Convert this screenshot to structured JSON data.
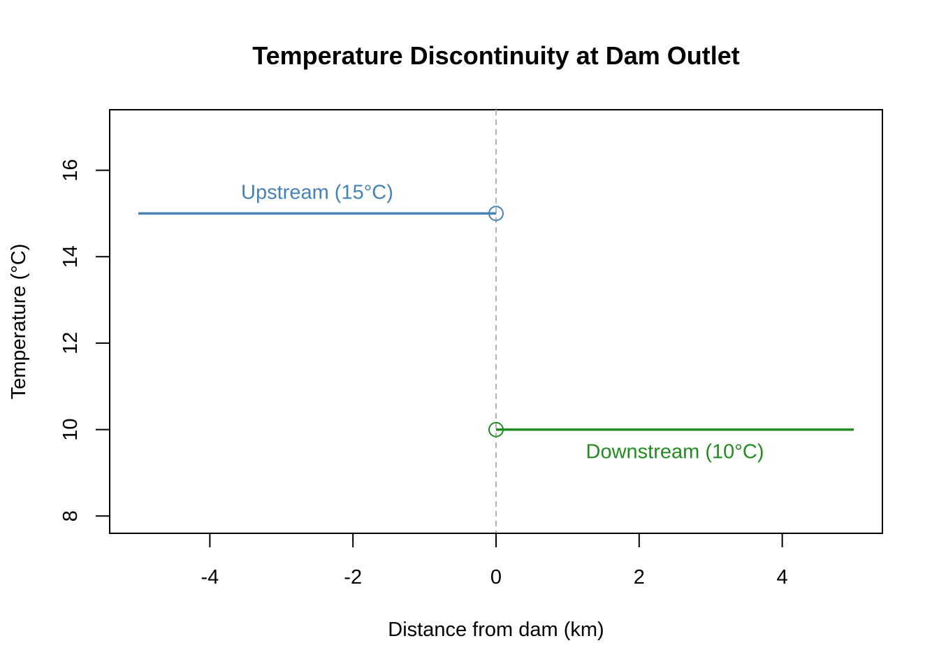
{
  "chart_data": {
    "type": "line",
    "title": "Temperature Discontinuity at Dam Outlet",
    "xlabel": "Distance from dam (km)",
    "ylabel": "Temperature (°C)",
    "xlim": [
      -5.4,
      5.4
    ],
    "ylim": [
      7.6,
      17.4
    ],
    "x_ticks": [
      -4,
      -2,
      0,
      2,
      4
    ],
    "y_ticks": [
      8,
      10,
      12,
      14,
      16
    ],
    "grid": false,
    "reference_line": {
      "x": 0,
      "style": "dashed",
      "color": "#b3b3b3"
    },
    "series": [
      {
        "label": "Upstream (15°C)",
        "color": "#4682b4",
        "x": [
          -5,
          0
        ],
        "y": [
          15,
          15
        ],
        "endpoint": {
          "x": 0,
          "y": 15,
          "marker": "open-circle"
        },
        "label_pos": {
          "x": -2.5,
          "y": 15.5
        }
      },
      {
        "label": "Downstream (10°C)",
        "color": "#228b22",
        "x": [
          0,
          5
        ],
        "y": [
          10,
          10
        ],
        "endpoint": {
          "x": 0,
          "y": 10,
          "marker": "open-circle"
        },
        "label_pos": {
          "x": 2.5,
          "y": 9.5
        }
      }
    ]
  }
}
